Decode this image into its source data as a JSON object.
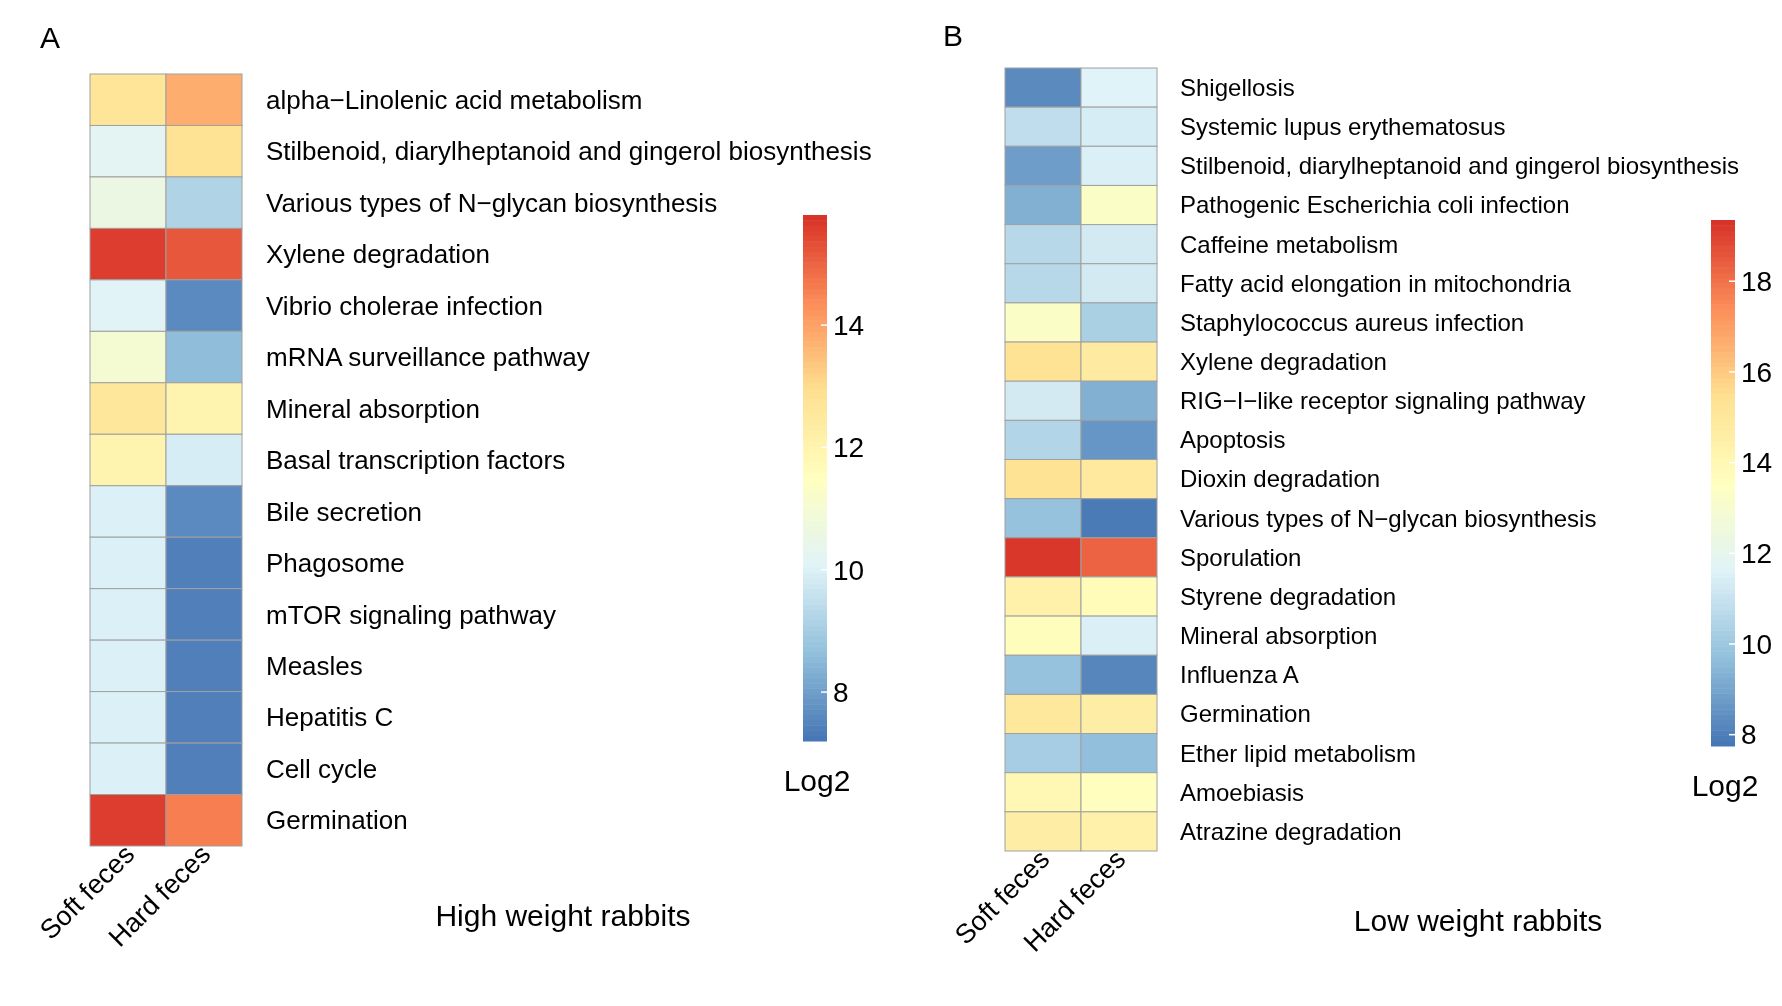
{
  "chart_data": [
    {
      "type": "heatmap",
      "title": "A",
      "xlabel": "High weight rabbits",
      "clabel": "Log2",
      "categories": [
        "Soft feces",
        "Hard feces"
      ],
      "y_categories": [
        "alpha−Linolenic acid metabolism",
        "Stilbenoid, diarylheptanoid and gingerol biosynthesis",
        "Various types of N−glycan biosynthesis",
        "Xylene degradation",
        "Vibrio cholerae infection",
        "mRNA surveillance pathway",
        "Mineral absorption",
        "Basal transcription factors",
        "Bile secretion",
        "Phagosome",
        "mTOR signaling pathway",
        "Measles",
        "Hepatitis C",
        "Cell cycle",
        "Germination"
      ],
      "cells": [
        [
          12.7,
          13.8
        ],
        [
          10.2,
          12.8
        ],
        [
          10.6,
          9.2
        ],
        [
          15.6,
          15.2
        ],
        [
          10.1,
          7.6
        ],
        [
          11.0,
          8.6
        ],
        [
          12.6,
          12.0
        ],
        [
          12.0,
          9.9
        ],
        [
          10.0,
          7.6
        ],
        [
          10.0,
          7.4
        ],
        [
          10.0,
          7.4
        ],
        [
          10.0,
          7.4
        ],
        [
          10.0,
          7.4
        ],
        [
          10.0,
          7.4
        ],
        [
          15.6,
          14.6
        ]
      ],
      "clim": [
        7.2,
        15.8
      ],
      "cticks": [
        8,
        10,
        12,
        14
      ]
    },
    {
      "type": "heatmap",
      "title": "B",
      "xlabel": "Low weight rabbits",
      "clabel": "Log2",
      "categories": [
        "Soft feces",
        "Hard feces"
      ],
      "y_categories": [
        "Shigellosis",
        "Systemic lupus erythematosus",
        "Stilbenoid, diarylheptanoid and gingerol biosynthesis",
        "Pathogenic Escherichia coli infection",
        "Caffeine metabolism",
        "Fatty acid elongation in mitochondria",
        "Staphylococcus aureus infection",
        "Xylene degradation",
        "RIG−I−like receptor signaling pathway",
        "Apoptosis",
        "Dioxin degradation",
        "Various types of N−glycan biosynthesis",
        "Sporulation",
        "Styrene degradation",
        "Mineral absorption",
        "Influenza A",
        "Germination",
        "Ether lipid metabolism",
        "Amoebiasis",
        "Atrazine degradation"
      ],
      "cells": [
        [
          8.3,
          11.6
        ],
        [
          10.8,
          11.4
        ],
        [
          8.8,
          11.5
        ],
        [
          9.3,
          13.3
        ],
        [
          10.6,
          11.3
        ],
        [
          10.6,
          11.3
        ],
        [
          13.3,
          10.3
        ],
        [
          15.3,
          14.8
        ],
        [
          11.3,
          9.3
        ],
        [
          10.5,
          8.6
        ],
        [
          15.3,
          14.9
        ],
        [
          9.8,
          7.9
        ],
        [
          19.2,
          18.3
        ],
        [
          14.4,
          13.8
        ],
        [
          13.7,
          11.5
        ],
        [
          9.8,
          8.2
        ],
        [
          15.0,
          14.6
        ],
        [
          10.2,
          9.7
        ],
        [
          14.0,
          13.6
        ],
        [
          14.6,
          14.4
        ]
      ],
      "clim": [
        7.75,
        19.35
      ],
      "cticks": [
        8,
        10,
        12,
        14,
        16,
        18
      ]
    }
  ]
}
